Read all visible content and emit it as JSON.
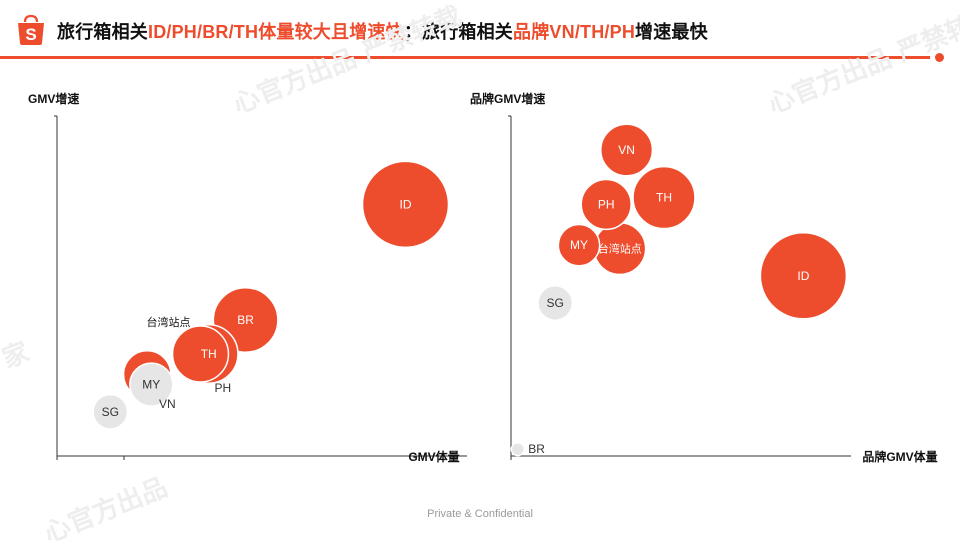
{
  "header": {
    "title_part1": "旅行箱相关",
    "title_highlight1": "ID/PH/BR/TH体量较大且增速快",
    "title_part2": "；旅行箱相关",
    "title_highlight2": "品牌VN/TH/PH",
    "title_part3": "增速最快",
    "logo_letter": "S"
  },
  "colors": {
    "accent": "#ee4d2d",
    "bubble_highlight": "#ee4d2d",
    "bubble_muted": "#e6e6e6"
  },
  "watermarks": [
    "心官方出品 严禁转载",
    "心官方出品 严禁转载",
    "心官方出品",
    "家"
  ],
  "footer": {
    "text": "Private & Confidential"
  },
  "chart_data": [
    {
      "type": "scatter",
      "subtype": "bubble",
      "xlabel": "GMV体量",
      "ylabel": "GMV增速",
      "grid": false,
      "points": [
        {
          "label": "ID",
          "x": 8.5,
          "y": 7.4,
          "size": 1.0,
          "highlight": true,
          "label_position": "inside"
        },
        {
          "label": "VN",
          "x": 2.2,
          "y": 2.4,
          "size": 0.55,
          "highlight": true,
          "label_position": "below-right"
        },
        {
          "label": "PH",
          "x": 3.5,
          "y": 3.0,
          "size": 0.65,
          "highlight": true,
          "label_position": "below-right"
        },
        {
          "label": "BR",
          "x": 4.6,
          "y": 4.0,
          "size": 0.75,
          "highlight": true,
          "label_position": "inside"
        },
        {
          "label": "台湾站点",
          "x": 3.5,
          "y": 3.0,
          "size": 0.0,
          "highlight": false,
          "label_position": "upper-left",
          "label_only": true
        },
        {
          "label": "TH",
          "x": 3.7,
          "y": 3.0,
          "size": 0.68,
          "highlight": true,
          "label_position": "inside"
        },
        {
          "label": "MY",
          "x": 2.3,
          "y": 2.1,
          "size": 0.5,
          "highlight": false,
          "label_position": "inside"
        },
        {
          "label": "SG",
          "x": 1.3,
          "y": 1.3,
          "size": 0.4,
          "highlight": false,
          "label_position": "inside"
        }
      ]
    },
    {
      "type": "scatter",
      "subtype": "bubble",
      "xlabel": "品牌GMV体量",
      "ylabel": "品牌GMV增速",
      "grid": false,
      "points": [
        {
          "label": "VN",
          "x": 3.4,
          "y": 9.0,
          "size": 0.6,
          "highlight": true,
          "label_position": "inside"
        },
        {
          "label": "TH",
          "x": 4.5,
          "y": 7.6,
          "size": 0.72,
          "highlight": true,
          "label_position": "inside"
        },
        {
          "label": "PH",
          "x": 2.8,
          "y": 7.4,
          "size": 0.58,
          "highlight": true,
          "label_position": "inside"
        },
        {
          "label": "MY",
          "x": 2.0,
          "y": 6.2,
          "size": 0.48,
          "highlight": true,
          "label_position": "inside"
        },
        {
          "label": "台湾站点",
          "x": 3.2,
          "y": 6.1,
          "size": 0.6,
          "highlight": true,
          "label_position": "inside"
        },
        {
          "label": "ID",
          "x": 8.6,
          "y": 5.3,
          "size": 1.0,
          "highlight": true,
          "label_position": "inside"
        },
        {
          "label": "SG",
          "x": 1.3,
          "y": 4.5,
          "size": 0.4,
          "highlight": false,
          "label_position": "inside"
        },
        {
          "label": "BR",
          "x": 0.2,
          "y": 0.2,
          "size": 0.15,
          "highlight": false,
          "label_position": "right"
        }
      ]
    }
  ]
}
